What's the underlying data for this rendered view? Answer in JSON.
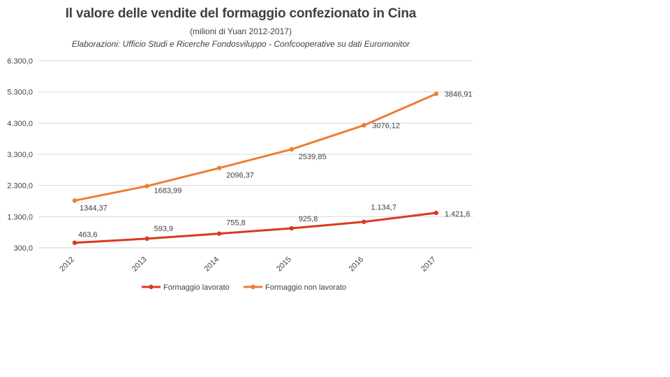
{
  "chart_data": {
    "type": "line",
    "title": "Il valore delle vendite del formaggio confezionato in Cina",
    "subtitle": "(milioni di Yuan 2012-2017)",
    "source": "Elaborazioni:  Ufficio Studi  e Ricerche Fondosviluppo  - Confcooperative  su dati Euromonitor",
    "x": [
      "2012",
      "2013",
      "2014",
      "2015",
      "2016",
      "2017"
    ],
    "ylim": [
      300,
      6300
    ],
    "yticks": [
      300,
      1300,
      2300,
      3300,
      4300,
      5300,
      6300
    ],
    "ytick_labels": [
      "300,0",
      "1.300,0",
      "2.300,0",
      "3.300,0",
      "4.300,0",
      "5.300,0",
      "6.300,0"
    ],
    "grid": true,
    "legend_position": "bottom",
    "series": [
      {
        "name": "Formaggio lavorato",
        "color": "#d83a1f",
        "values": [
          463.6,
          593.9,
          755.8,
          925.8,
          1134.7,
          1421.6
        ],
        "labels": [
          "463,6",
          "593,9",
          "755,8",
          "925,8",
          "1.134,7",
          "1.421,6"
        ]
      },
      {
        "name": "Formaggio non lavorato",
        "color": "#ed7d31",
        "values": [
          1815,
          2280,
          2860,
          3460,
          4230,
          5240
        ],
        "labels": [
          "1344,37",
          "1683,99",
          "2096,37",
          "2539,85",
          "3076,12",
          "3846,91"
        ]
      }
    ]
  }
}
